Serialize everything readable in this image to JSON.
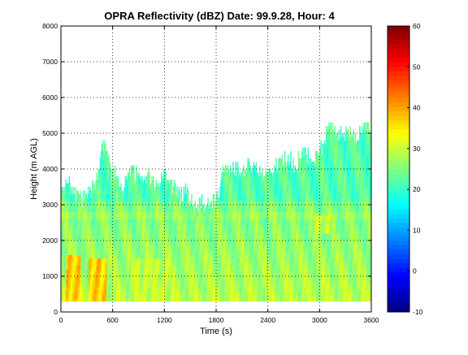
{
  "chart_data": {
    "type": "heatmap",
    "title": "OPRA Reflectivity (dBZ)  Date: 99.9.28, Hour: 4",
    "xlabel": "Time (s)",
    "ylabel": "Height (m AGL)",
    "xlim": [
      0,
      3600
    ],
    "ylim": [
      0,
      8000
    ],
    "xticks": [
      0,
      600,
      1200,
      1800,
      2400,
      3000,
      3600
    ],
    "yticks": [
      0,
      1000,
      2000,
      3000,
      4000,
      5000,
      6000,
      7000,
      8000
    ],
    "grid": true,
    "grid_style": "dotted",
    "colormap": "jet",
    "colorbar": {
      "range": [
        -10,
        60
      ],
      "ticks": [
        -10,
        0,
        10,
        20,
        30,
        40,
        50,
        60
      ]
    },
    "data_floor_height": 300,
    "echo_top_profile": {
      "time": [
        0,
        100,
        150,
        250,
        350,
        440,
        480,
        520,
        560,
        620,
        700,
        800,
        900,
        1000,
        1100,
        1200,
        1300,
        1400,
        1450,
        1500,
        1650,
        1800,
        1900,
        2000,
        2100,
        2200,
        2300,
        2400,
        2500,
        2600,
        2700,
        2800,
        2900,
        3000,
        3100,
        3200,
        3300,
        3400,
        3500,
        3600
      ],
      "height": [
        3600,
        3500,
        3200,
        3100,
        3300,
        3900,
        4600,
        4600,
        4000,
        3800,
        3300,
        3900,
        3800,
        3700,
        3600,
        3700,
        3500,
        3200,
        3300,
        3000,
        3000,
        3050,
        4000,
        4000,
        3900,
        4100,
        3800,
        3900,
        4000,
        4300,
        4100,
        4400,
        4200,
        4400,
        5200,
        4900,
        5000,
        4800,
        5100,
        5000
      ]
    },
    "cores": [
      {
        "time_range": [
          60,
          220
        ],
        "height_range": [
          300,
          1600
        ],
        "max_dbz": 40
      },
      {
        "time_range": [
          320,
          520
        ],
        "height_range": [
          300,
          1500
        ],
        "max_dbz": 40
      },
      {
        "time_range": [
          850,
          1300
        ],
        "height_range": [
          300,
          1500
        ],
        "max_dbz": 32
      },
      {
        "time_range": [
          2900,
          3100
        ],
        "height_range": [
          2200,
          2700
        ],
        "max_dbz": 32
      }
    ],
    "bright_band_height": 2700
  }
}
